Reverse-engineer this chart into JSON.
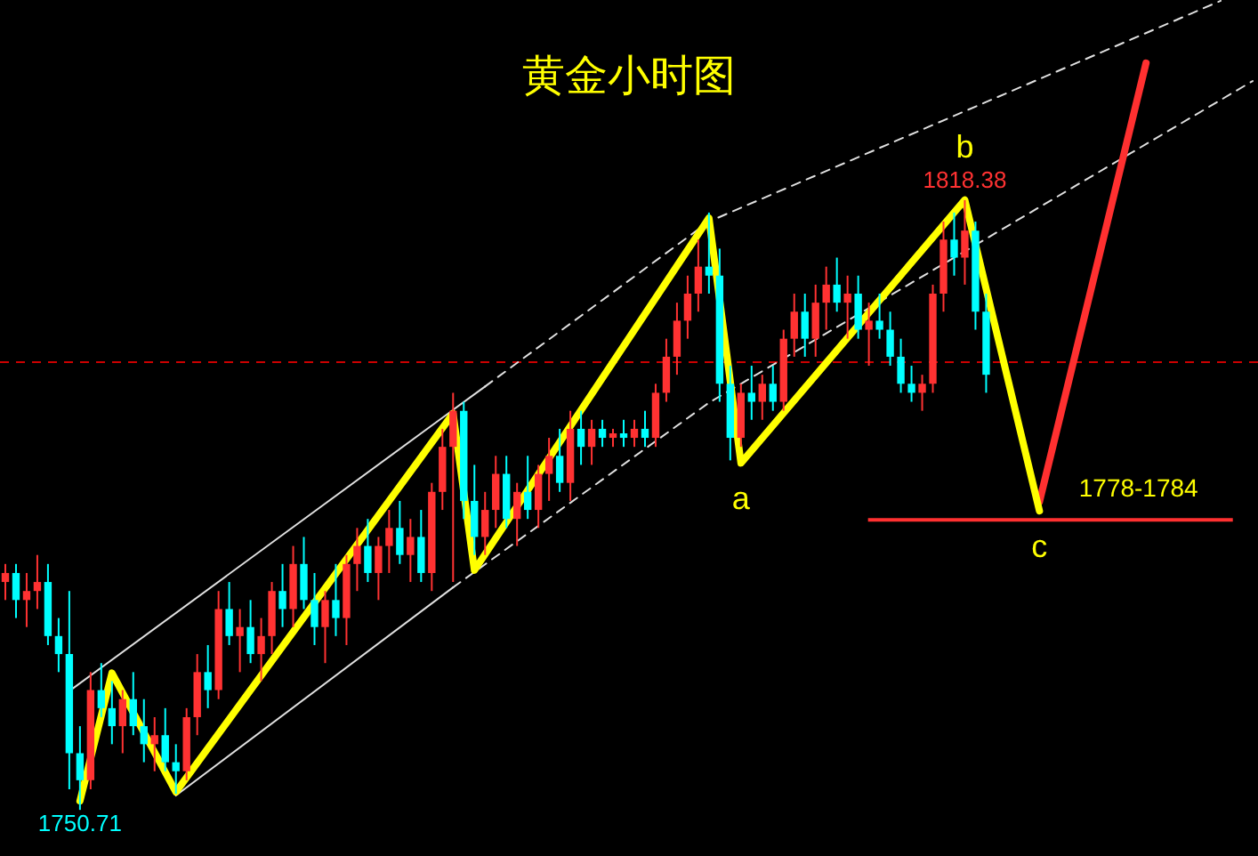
{
  "chart_data": {
    "type": "candlestick",
    "title": "黄金小时图",
    "categories": [
      null,
      null,
      null,
      null,
      null,
      null,
      null,
      null,
      null,
      null,
      null,
      null,
      null,
      null,
      null,
      null,
      null,
      null,
      null,
      null,
      null,
      null,
      null,
      null,
      null,
      null,
      null,
      null,
      null,
      null,
      null,
      null,
      null,
      null,
      null,
      null,
      null,
      null,
      null,
      null,
      null,
      null,
      null,
      null,
      null,
      null,
      null,
      null,
      null,
      null,
      null,
      null,
      null,
      null,
      null,
      null,
      null,
      null,
      null,
      null,
      null,
      null,
      null,
      null,
      null,
      null,
      null,
      null,
      null,
      null,
      null,
      null,
      null,
      null,
      null,
      null,
      null,
      null,
      null,
      null,
      null,
      null,
      null,
      null,
      null,
      null,
      null,
      null,
      null,
      null,
      null,
      null,
      null,
      null,
      null,
      null,
      null,
      null,
      null,
      null,
      null,
      null,
      null,
      null,
      null,
      null,
      null,
      null,
      null,
      null,
      null,
      null,
      null,
      null,
      null,
      null,
      null,
      null
    ],
    "ohlc": [
      [
        1776,
        1778,
        1774,
        1777
      ],
      [
        1777,
        1778,
        1772,
        1774
      ],
      [
        1774,
        1777,
        1771,
        1775
      ],
      [
        1775,
        1779,
        1773,
        1776
      ],
      [
        1776,
        1778,
        1769,
        1770
      ],
      [
        1770,
        1772,
        1766,
        1768
      ],
      [
        1768,
        1775,
        1753,
        1757
      ],
      [
        1757,
        1760,
        1750.71,
        1754
      ],
      [
        1754,
        1766,
        1753,
        1764
      ],
      [
        1764,
        1767,
        1761,
        1762
      ],
      [
        1762,
        1765,
        1758,
        1760
      ],
      [
        1760,
        1764,
        1757,
        1763
      ],
      [
        1763,
        1766,
        1759,
        1760
      ],
      [
        1760,
        1763,
        1756,
        1758
      ],
      [
        1758,
        1761,
        1755,
        1759
      ],
      [
        1759,
        1762,
        1755,
        1756
      ],
      [
        1756,
        1758,
        1752.5,
        1755
      ],
      [
        1755,
        1762,
        1754,
        1761
      ],
      [
        1761,
        1768,
        1759,
        1766
      ],
      [
        1766,
        1769,
        1762,
        1764
      ],
      [
        1764,
        1775,
        1763,
        1773
      ],
      [
        1773,
        1776,
        1769,
        1770
      ],
      [
        1770,
        1773,
        1766,
        1771
      ],
      [
        1771,
        1774,
        1767,
        1768
      ],
      [
        1768,
        1772,
        1765,
        1770
      ],
      [
        1770,
        1776,
        1768,
        1775
      ],
      [
        1775,
        1778,
        1771,
        1773
      ],
      [
        1773,
        1780,
        1771,
        1778
      ],
      [
        1778,
        1781,
        1773,
        1774
      ],
      [
        1774,
        1777,
        1769,
        1771
      ],
      [
        1771,
        1775,
        1767,
        1774
      ],
      [
        1774,
        1778,
        1770,
        1772
      ],
      [
        1772,
        1779,
        1769,
        1778
      ],
      [
        1778,
        1782,
        1775,
        1780
      ],
      [
        1780,
        1783,
        1776,
        1777
      ],
      [
        1777,
        1781,
        1774,
        1780
      ],
      [
        1780,
        1784,
        1777,
        1782
      ],
      [
        1782,
        1785,
        1778,
        1779
      ],
      [
        1779,
        1783,
        1776,
        1781
      ],
      [
        1781,
        1784,
        1776,
        1777
      ],
      [
        1777,
        1787,
        1775,
        1786
      ],
      [
        1786,
        1793,
        1784,
        1791
      ],
      [
        1791,
        1797,
        1776,
        1795
      ],
      [
        1795,
        1796,
        1783,
        1785
      ],
      [
        1785,
        1789,
        1779,
        1781
      ],
      [
        1781,
        1786,
        1779,
        1784
      ],
      [
        1784,
        1790,
        1782,
        1788
      ],
      [
        1788,
        1790,
        1782,
        1783
      ],
      [
        1783,
        1787,
        1780,
        1786
      ],
      [
        1786,
        1790,
        1783,
        1784
      ],
      [
        1784,
        1789,
        1782,
        1788
      ],
      [
        1788,
        1792,
        1785,
        1790
      ],
      [
        1790,
        1793,
        1786,
        1787
      ],
      [
        1787,
        1795,
        1785,
        1793
      ],
      [
        1793,
        1795,
        1789,
        1791
      ],
      [
        1791,
        1794,
        1789,
        1793
      ],
      [
        1793,
        1794,
        1791,
        1792
      ],
      [
        1792,
        1793,
        1791,
        1792.5
      ],
      [
        1792.5,
        1794,
        1791,
        1792
      ],
      [
        1792,
        1794,
        1791,
        1793
      ],
      [
        1793,
        1795,
        1791,
        1792
      ],
      [
        1792,
        1798,
        1791,
        1797
      ],
      [
        1797,
        1803,
        1796,
        1801
      ],
      [
        1801,
        1807,
        1799,
        1805
      ],
      [
        1805,
        1810,
        1803,
        1808
      ],
      [
        1808,
        1814,
        1806,
        1811
      ],
      [
        1811,
        1817,
        1808,
        1810
      ],
      [
        1810,
        1813,
        1796,
        1798
      ],
      [
        1798,
        1800,
        1789.5,
        1792
      ],
      [
        1792,
        1798,
        1791,
        1797
      ],
      [
        1797,
        1800,
        1794,
        1796
      ],
      [
        1796,
        1799,
        1794,
        1798
      ],
      [
        1798,
        1800,
        1795,
        1796
      ],
      [
        1796,
        1804,
        1795,
        1803
      ],
      [
        1803,
        1808,
        1801,
        1806
      ],
      [
        1806,
        1808,
        1801,
        1803
      ],
      [
        1803,
        1809,
        1801,
        1807
      ],
      [
        1807,
        1811,
        1804,
        1809
      ],
      [
        1809,
        1812,
        1806,
        1807
      ],
      [
        1807,
        1810,
        1803,
        1808
      ],
      [
        1808,
        1810,
        1803,
        1804
      ],
      [
        1804,
        1807,
        1800,
        1805
      ],
      [
        1805,
        1808,
        1803,
        1804
      ],
      [
        1804,
        1806,
        1800,
        1801
      ],
      [
        1801,
        1803,
        1797,
        1798
      ],
      [
        1798,
        1800,
        1796,
        1797
      ],
      [
        1797,
        1799,
        1795,
        1798
      ],
      [
        1798,
        1809,
        1797,
        1808
      ],
      [
        1808,
        1816,
        1806,
        1814
      ],
      [
        1814,
        1817,
        1810,
        1812
      ],
      [
        1812,
        1818.38,
        1809,
        1815
      ],
      [
        1815,
        1816,
        1804,
        1806
      ],
      [
        1806,
        1808,
        1797,
        1799
      ],
      null,
      null,
      null,
      null,
      null,
      null,
      null,
      null,
      null,
      null,
      null,
      null,
      null,
      null,
      null,
      null,
      null,
      null,
      null,
      null,
      null,
      null,
      null,
      null,
      null
    ],
    "colors": [
      "#ff3232",
      "#00ffff",
      "#ff3232",
      "#ff3232",
      "#00ffff",
      "#00ffff",
      "#00ffff",
      "#00ffff",
      "#ff3232",
      "#00ffff",
      "#00ffff",
      "#ff3232",
      "#00ffff",
      "#00ffff",
      "#ff3232",
      "#00ffff",
      "#00ffff",
      "#ff3232",
      "#ff3232",
      "#00ffff",
      "#ff3232",
      "#00ffff",
      "#ff3232",
      "#00ffff",
      "#ff3232",
      "#ff3232",
      "#00ffff",
      "#ff3232",
      "#00ffff",
      "#00ffff",
      "#ff3232",
      "#00ffff",
      "#ff3232",
      "#ff3232",
      "#00ffff",
      "#ff3232",
      "#ff3232",
      "#00ffff",
      "#ff3232",
      "#00ffff",
      "#ff3232",
      "#ff3232",
      "#ff3232",
      "#00ffff",
      "#00ffff",
      "#ff3232",
      "#ff3232",
      "#00ffff",
      "#ff3232",
      "#00ffff",
      "#ff3232",
      "#ff3232",
      "#00ffff",
      "#ff3232",
      "#00ffff",
      "#ff3232",
      "#00ffff",
      "#ff3232",
      "#00ffff",
      "#ff3232",
      "#00ffff",
      "#ff3232",
      "#ff3232",
      "#ff3232",
      "#ff3232",
      "#ff3232",
      "#00ffff",
      "#00ffff",
      "#00ffff",
      "#ff3232",
      "#00ffff",
      "#ff3232",
      "#00ffff",
      "#ff3232",
      "#ff3232",
      "#00ffff",
      "#ff3232",
      "#ff3232",
      "#00ffff",
      "#ff3232",
      "#00ffff",
      "#ff3232",
      "#00ffff",
      "#00ffff",
      "#00ffff",
      "#00ffff",
      "#ff3232",
      "#ff3232",
      "#ff3232",
      "#00ffff",
      "#ff3232",
      "#00ffff",
      "#00ffff",
      null,
      null,
      null,
      null,
      null,
      null,
      null,
      null,
      null,
      null,
      null,
      null,
      null,
      null,
      null,
      null,
      null,
      null,
      null,
      null,
      null,
      null,
      null,
      null,
      null
    ],
    "value_labels": [
      null,
      null,
      null,
      null,
      null,
      null,
      null,
      "1750.71",
      null,
      null,
      null,
      null,
      null,
      null,
      null,
      null,
      null,
      null,
      null,
      null,
      null,
      null,
      null,
      null,
      null,
      null,
      null,
      null,
      null,
      null,
      null,
      null,
      null,
      null,
      null,
      null,
      null,
      null,
      null,
      null,
      null,
      null,
      null,
      null,
      null,
      null,
      null,
      null,
      null,
      null,
      null,
      null,
      null,
      null,
      null,
      null,
      null,
      null,
      null,
      null,
      null,
      null,
      null,
      null,
      null,
      null,
      null,
      null,
      null,
      null,
      null,
      null,
      null,
      null,
      null,
      null,
      null,
      null,
      null,
      null,
      null,
      null,
      null,
      null,
      null,
      null,
      null,
      null,
      null,
      null,
      "1818.38",
      null,
      null,
      null,
      null,
      null,
      null,
      null,
      null,
      null,
      null,
      null,
      null,
      null,
      null,
      null,
      null,
      null,
      null,
      null,
      null,
      null,
      null,
      null,
      null,
      null,
      null,
      null
    ],
    "series": [
      {
        "type": "line",
        "color": "#ffff00",
        "values": [
          null,
          null,
          null,
          null,
          null,
          null,
          null,
          1751.7,
          null,
          null,
          1765.9,
          null,
          null,
          null,
          null,
          null,
          1752.7,
          null,
          null,
          null,
          null,
          null,
          null,
          null,
          null,
          null,
          null,
          null,
          null,
          null,
          null,
          null,
          null,
          null,
          null,
          null,
          null,
          null,
          null,
          null,
          null,
          null,
          1794.7,
          null,
          1777.3,
          null,
          null,
          null,
          null,
          null,
          null,
          null,
          null,
          null,
          null,
          null,
          null,
          null,
          null,
          null,
          null,
          null,
          null,
          null,
          null,
          null,
          1816.4,
          null,
          null,
          1789.2,
          null,
          null,
          null,
          null,
          null,
          null,
          null,
          null,
          null,
          null,
          null,
          null,
          null,
          null,
          null,
          null,
          null,
          null,
          null,
          null,
          1818.4,
          null,
          null,
          null,
          null,
          null,
          null,
          1783.9,
          null,
          null,
          null,
          null,
          null,
          null,
          null,
          null,
          null,
          null,
          null,
          null,
          null,
          null,
          null,
          null,
          null,
          null,
          null,
          null
        ],
        "value_labels": [
          null,
          null,
          null,
          null,
          null,
          null,
          null,
          null,
          null,
          null,
          null,
          null,
          null,
          null,
          null,
          null,
          null,
          null,
          null,
          null,
          null,
          null,
          null,
          null,
          null,
          null,
          null,
          null,
          null,
          null,
          null,
          null,
          null,
          null,
          null,
          null,
          null,
          null,
          null,
          null,
          null,
          null,
          null,
          null,
          null,
          null,
          null,
          null,
          null,
          null,
          null,
          null,
          null,
          null,
          null,
          null,
          null,
          null,
          null,
          null,
          null,
          null,
          null,
          null,
          null,
          null,
          null,
          null,
          null,
          "a",
          null,
          null,
          null,
          null,
          null,
          null,
          null,
          null,
          null,
          null,
          null,
          null,
          null,
          null,
          null,
          null,
          null,
          null,
          null,
          null,
          "b",
          null,
          null,
          null,
          null,
          null,
          null,
          "c",
          null,
          null,
          null,
          null,
          null,
          null,
          null,
          null,
          null,
          null,
          null,
          null,
          null,
          null,
          null,
          null,
          null,
          null,
          null,
          null
        ]
      },
      {
        "type": "line",
        "color": "#ff3030",
        "values": [
          null,
          null,
          null,
          null,
          null,
          null,
          null,
          null,
          null,
          null,
          null,
          null,
          null,
          null,
          null,
          null,
          null,
          null,
          null,
          null,
          null,
          null,
          null,
          null,
          null,
          null,
          null,
          null,
          null,
          null,
          null,
          null,
          null,
          null,
          null,
          null,
          null,
          null,
          null,
          null,
          null,
          null,
          null,
          null,
          null,
          null,
          null,
          null,
          null,
          null,
          null,
          null,
          null,
          null,
          null,
          null,
          null,
          null,
          null,
          null,
          null,
          null,
          null,
          null,
          null,
          null,
          null,
          null,
          null,
          null,
          null,
          null,
          null,
          null,
          null,
          null,
          null,
          null,
          null,
          null,
          null,
          null,
          null,
          null,
          null,
          null,
          null,
          null,
          null,
          null,
          null,
          null,
          null,
          null,
          null,
          null,
          null,
          1784.9,
          null,
          null,
          null,
          null,
          null,
          null,
          null,
          null,
          null,
          1833.6,
          null,
          null,
          null,
          null,
          null,
          null,
          null,
          null,
          null,
          null
        ]
      },
      {
        "type": "line",
        "color": "#e0e0e0",
        "line_style": "solid",
        "values": [
          null,
          null,
          null,
          null,
          null,
          null,
          1763.9,
          null,
          null,
          null,
          null,
          null,
          null,
          null,
          null,
          null,
          null,
          null,
          null,
          null,
          null,
          null,
          null,
          null,
          null,
          null,
          null,
          null,
          null,
          null,
          null,
          null,
          null,
          null,
          null,
          null,
          null,
          null,
          null,
          null,
          null,
          null,
          null,
          null,
          null,
          1797.7,
          null,
          null,
          null,
          null,
          null,
          null,
          null,
          null,
          null,
          null,
          null,
          null,
          null,
          null,
          null,
          null,
          null,
          null,
          null,
          null,
          null,
          null,
          null,
          null,
          null,
          null,
          null,
          null,
          null,
          null,
          null,
          null,
          null,
          null,
          null,
          null,
          null,
          null,
          null,
          null,
          null,
          null,
          null,
          null,
          null,
          null,
          null,
          null,
          null,
          null,
          null,
          null,
          null,
          null,
          null,
          null,
          null,
          null,
          null,
          null,
          null,
          null,
          null,
          null,
          null,
          null,
          null,
          null,
          null,
          null,
          null,
          null
        ]
      },
      {
        "type": "line",
        "color": "#e0e0e0",
        "line_style": "solid",
        "values": [
          null,
          null,
          null,
          null,
          null,
          null,
          null,
          null,
          null,
          null,
          null,
          null,
          null,
          null,
          null,
          null,
          1752.3,
          null,
          null,
          null,
          null,
          null,
          null,
          null,
          null,
          null,
          null,
          null,
          null,
          null,
          null,
          null,
          null,
          null,
          null,
          null,
          null,
          null,
          null,
          null,
          null,
          null,
          1775.4,
          null,
          null,
          null,
          null,
          null,
          null,
          null,
          null,
          null,
          null,
          null,
          null,
          null,
          null,
          null,
          null,
          null,
          null,
          null,
          null,
          null,
          null,
          null,
          null,
          null,
          null,
          null,
          null,
          null,
          null,
          null,
          null,
          null,
          null,
          null,
          null,
          null,
          null,
          null,
          null,
          null,
          null,
          null,
          null,
          null,
          null,
          null,
          null,
          null,
          null,
          null,
          null,
          null,
          null,
          null,
          null,
          null,
          null,
          null,
          null,
          null,
          null,
          null,
          null,
          null,
          null,
          null,
          null,
          null,
          null,
          null,
          null,
          null,
          null,
          null
        ]
      },
      {
        "type": "line",
        "color": "#e0e0e0",
        "line_style": "dashed",
        "values": [
          null,
          null,
          null,
          null,
          null,
          null,
          null,
          null,
          null,
          null,
          null,
          null,
          null,
          null,
          null,
          null,
          null,
          null,
          null,
          null,
          null,
          null,
          null,
          null,
          null,
          null,
          null,
          null,
          null,
          null,
          null,
          null,
          null,
          null,
          null,
          null,
          null,
          null,
          null,
          null,
          null,
          null,
          null,
          null,
          null,
          1797.7,
          null,
          null,
          null,
          null,
          null,
          null,
          null,
          null,
          null,
          null,
          null,
          null,
          null,
          null,
          null,
          null,
          null,
          null,
          null,
          null,
          1816.0,
          null,
          null,
          null,
          null,
          null,
          null,
          null,
          null,
          null,
          null,
          null,
          null,
          null,
          null,
          null,
          null,
          null,
          null,
          null,
          null,
          null,
          null,
          null,
          null,
          null,
          null,
          null,
          null,
          null,
          null,
          null,
          null,
          null,
          null,
          null,
          null,
          null,
          null,
          null,
          null,
          null,
          null,
          null,
          null,
          null,
          null,
          null,
          1840.5,
          null,
          null,
          null
        ]
      },
      {
        "type": "line",
        "color": "#e0e0e0",
        "line_style": "dashed",
        "values": [
          null,
          null,
          null,
          null,
          null,
          null,
          null,
          null,
          null,
          null,
          null,
          null,
          null,
          null,
          null,
          null,
          null,
          null,
          null,
          null,
          null,
          null,
          null,
          null,
          null,
          null,
          null,
          null,
          null,
          null,
          null,
          null,
          null,
          null,
          null,
          null,
          null,
          null,
          null,
          null,
          null,
          null,
          1775.4,
          null,
          null,
          null,
          null,
          null,
          null,
          null,
          null,
          null,
          null,
          null,
          null,
          null,
          null,
          null,
          null,
          null,
          null,
          null,
          null,
          null,
          null,
          null,
          1795.9,
          null,
          null,
          null,
          null,
          null,
          null,
          null,
          null,
          null,
          null,
          null,
          null,
          null,
          null,
          null,
          null,
          null,
          null,
          null,
          null,
          null,
          null,
          null,
          null,
          null,
          null,
          null,
          null,
          null,
          null,
          null,
          null,
          null,
          null,
          null,
          null,
          null,
          null,
          null,
          null,
          null,
          null,
          null,
          null,
          null,
          null,
          null,
          null,
          null,
          null,
          1831.6
        ]
      }
    ],
    "ref_lines": [
      {
        "axis": "y",
        "value": 1800.4,
        "color": "#cc0000",
        "line_style": "dashed"
      },
      {
        "axis": "y",
        "value": 1782.9,
        "color": "#ff3030",
        "line_style": "solid"
      }
    ],
    "annotations": [
      "1778-1784"
    ],
    "tick_labels": false,
    "grid": false,
    "legend": false
  }
}
